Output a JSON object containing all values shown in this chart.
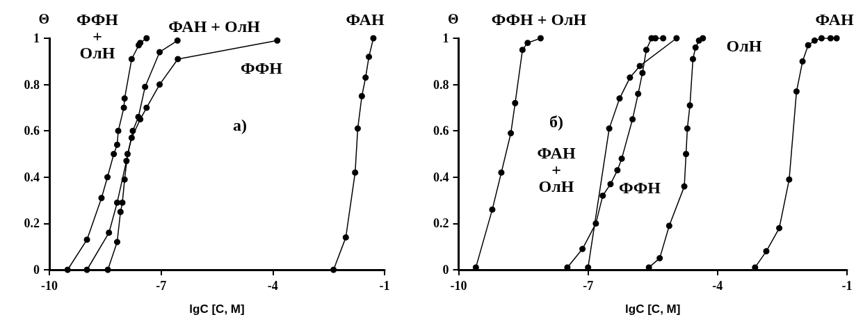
{
  "chart_data": [
    {
      "type": "line",
      "xlabel": "lgC [C, M]",
      "ylabel": "Θ",
      "xlim": [
        -10,
        -1
      ],
      "xticks": [
        -10,
        -7,
        -4,
        -1
      ],
      "ylim": [
        0,
        1
      ],
      "yticks": [
        0,
        0.2,
        0.4,
        0.6,
        0.8,
        1
      ],
      "grid": false,
      "legend": false,
      "marker": "circle",
      "line_style": "solid",
      "annotations": [
        "а)"
      ],
      "series": [
        {
          "name": "ФФН + ОлН",
          "color": "#000000",
          "x": [
            -9.51,
            -8.99,
            -8.6,
            -8.44,
            -8.27,
            -8.18,
            -8.15,
            -8.0,
            -7.98,
            -7.79,
            -7.6,
            -7.56,
            -7.39
          ],
          "values": [
            0,
            0.13,
            0.31,
            0.4,
            0.5,
            0.54,
            0.6,
            0.7,
            0.74,
            0.91,
            0.97,
            0.98,
            1.0
          ]
        },
        {
          "name": "ФАН + ОлН",
          "color": "#000000",
          "x": [
            -8.99,
            -8.4,
            -8.18,
            -7.93,
            -7.76,
            -7.61,
            -7.43,
            -7.04,
            -6.56
          ],
          "values": [
            0,
            0.16,
            0.29,
            0.47,
            0.6,
            0.66,
            0.79,
            0.94,
            0.99
          ]
        },
        {
          "name": "ФФН",
          "color": "#000000",
          "x": [
            -8.43,
            -8.18,
            -8.09,
            -8.04,
            -7.98,
            -7.9,
            -7.79,
            -7.56,
            -7.39,
            -7.04,
            -6.55,
            -3.88
          ],
          "values": [
            0,
            0.12,
            0.25,
            0.29,
            0.39,
            0.5,
            0.57,
            0.65,
            0.7,
            0.8,
            0.91,
            0.99
          ]
        },
        {
          "name": "ФАН",
          "color": "#000000",
          "x": [
            -2.37,
            -2.04,
            -1.79,
            -1.72,
            -1.61,
            -1.51,
            -1.42,
            -1.3
          ],
          "values": [
            0,
            0.14,
            0.42,
            0.61,
            0.75,
            0.83,
            0.92,
            1.0
          ]
        }
      ]
    },
    {
      "type": "line",
      "xlabel": "lgC [C, M]",
      "ylabel": "Θ",
      "xlim": [
        -10,
        -1
      ],
      "xticks": [
        -10,
        -7,
        -4,
        -1
      ],
      "ylim": [
        0,
        1
      ],
      "yticks": [
        0,
        0.2,
        0.4,
        0.6,
        0.8,
        1
      ],
      "grid": false,
      "legend": false,
      "marker": "circle",
      "line_style": "solid",
      "annotations": [
        "б)"
      ],
      "series": [
        {
          "name": "ФФН + ОлН",
          "color": "#000000",
          "x": [
            -9.6,
            -9.22,
            -9.01,
            -8.79,
            -8.69,
            -8.52,
            -8.4,
            -8.1
          ],
          "values": [
            0.01,
            0.26,
            0.42,
            0.59,
            0.72,
            0.95,
            0.98,
            1.0
          ]
        },
        {
          "name": "ФФН",
          "color": "#000000",
          "x": [
            -7.48,
            -7.13,
            -6.82,
            -6.66,
            -6.48,
            -6.32,
            -6.22,
            -5.97,
            -5.84,
            -5.74,
            -5.65,
            -5.53,
            -5.44,
            -5.26
          ],
          "values": [
            0.01,
            0.09,
            0.2,
            0.32,
            0.37,
            0.43,
            0.48,
            0.65,
            0.76,
            0.85,
            0.95,
            1.0,
            1.0,
            1.0
          ]
        },
        {
          "name": "ФАН + ОлН",
          "color": "#000000",
          "x": [
            -7.0,
            -6.51,
            -6.27,
            -6.03,
            -5.8,
            -4.95
          ],
          "values": [
            0.01,
            0.61,
            0.74,
            0.83,
            0.88,
            1.0
          ]
        },
        {
          "name": "ОлН",
          "color": "#000000",
          "x": [
            -5.59,
            -5.34,
            -5.12,
            -4.77,
            -4.73,
            -4.7,
            -4.64,
            -4.57,
            -4.51,
            -4.43,
            -4.34
          ],
          "values": [
            0.01,
            0.05,
            0.19,
            0.36,
            0.5,
            0.61,
            0.71,
            0.91,
            0.96,
            0.99,
            1.0
          ]
        },
        {
          "name": "ФАН",
          "color": "#000000",
          "x": [
            -3.13,
            -2.87,
            -2.57,
            -2.34,
            -2.17,
            -2.03,
            -1.9,
            -1.75,
            -1.59,
            -1.38,
            -1.24
          ],
          "values": [
            0.01,
            0.08,
            0.18,
            0.39,
            0.77,
            0.9,
            0.97,
            0.99,
            1.0,
            1.0,
            1.0
          ]
        }
      ]
    }
  ]
}
